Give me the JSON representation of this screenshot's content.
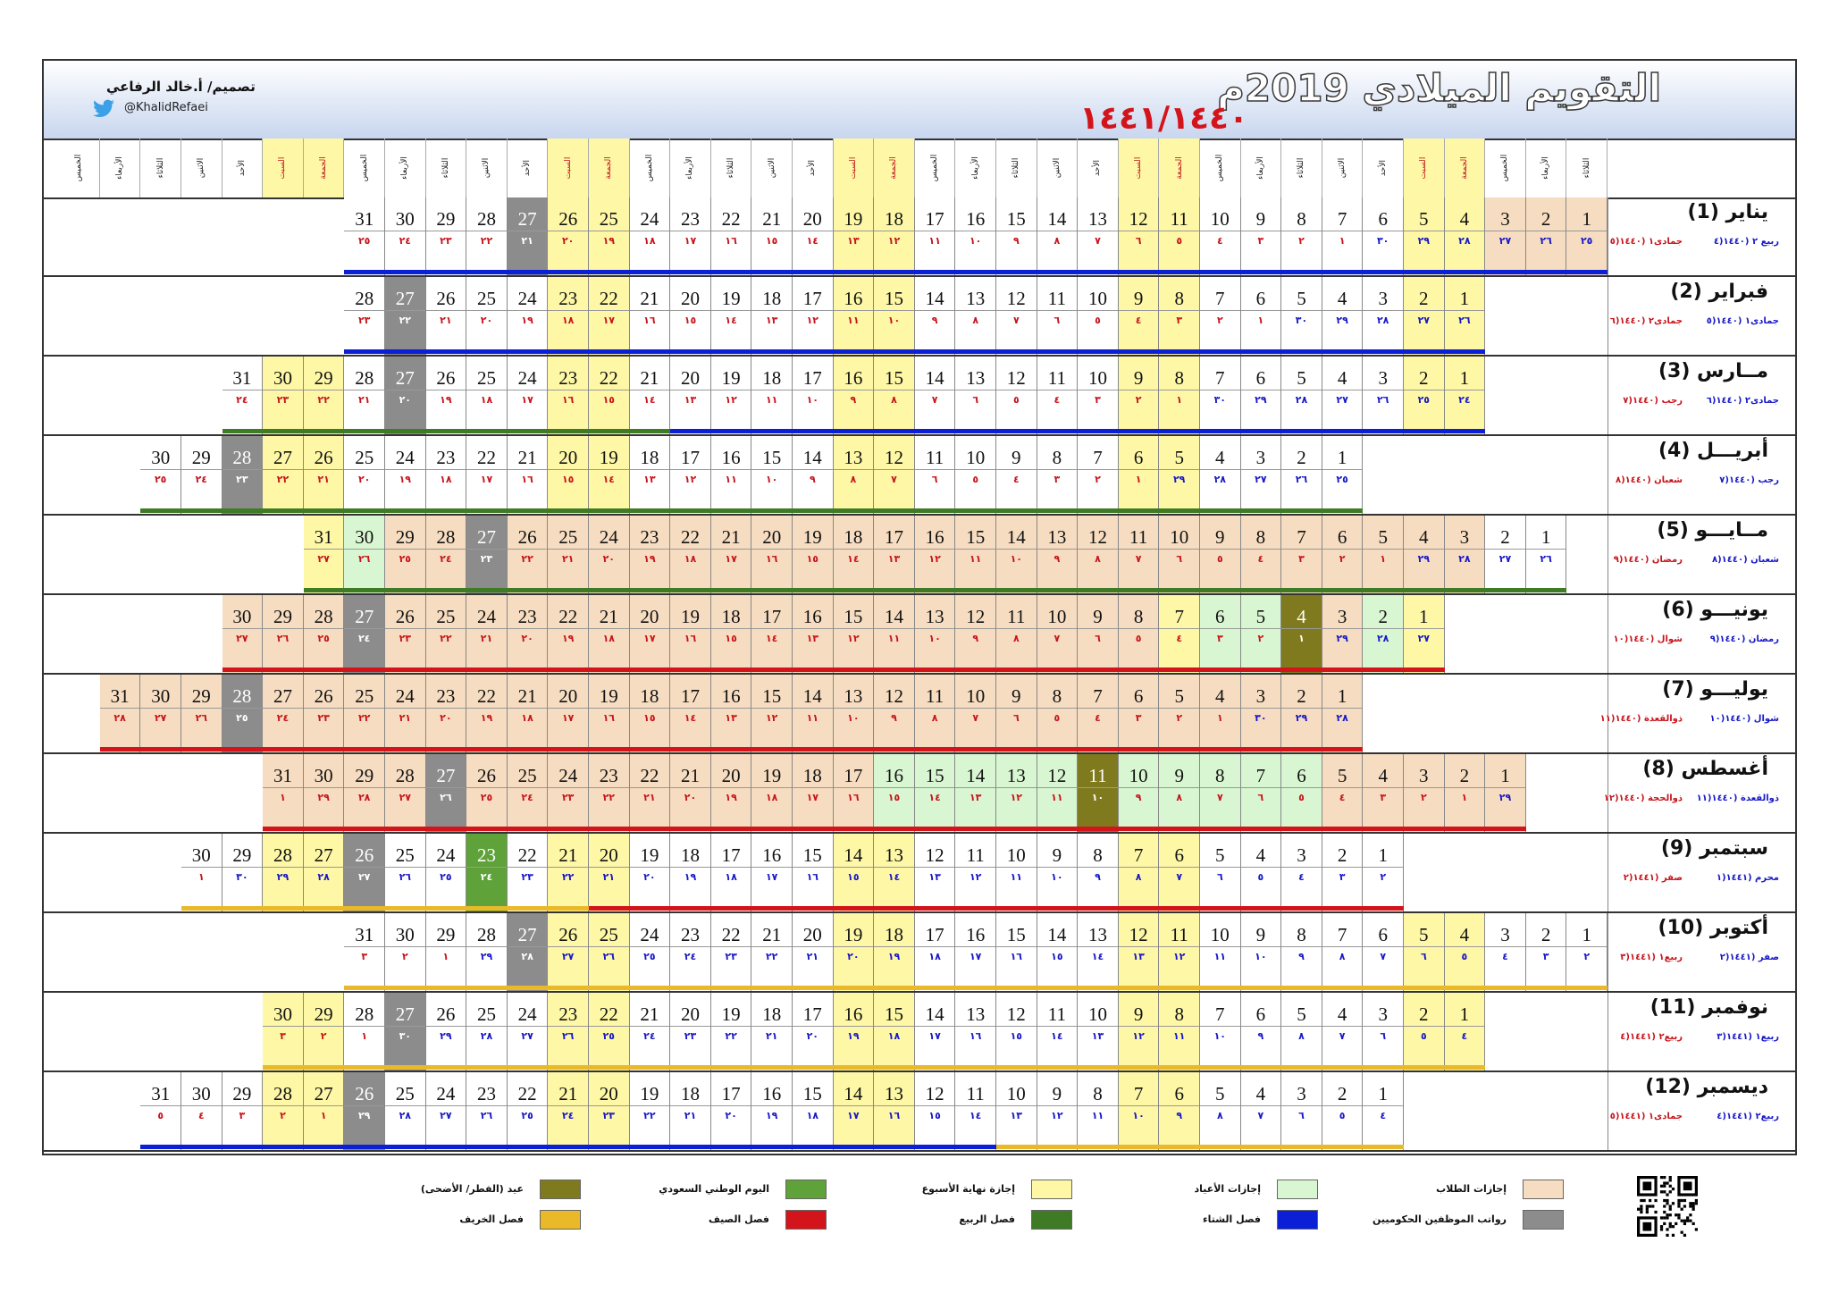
{
  "header": {
    "title": "التقويم الميلادي 2019م",
    "hijri_years": "١٤٤١/١٤٤٠",
    "designer": "تصميم/ أ.خالد الرفاعي",
    "twitter_handle": "@KhalidRefaei",
    "twitter_icon": "twitter-bird-icon"
  },
  "day_headers": [
    "الثلاثاء",
    "الأربعاء",
    "الخميس",
    "الجمعة",
    "السبت",
    "الأحد",
    "الاثنين",
    "الثلاثاء",
    "الأربعاء",
    "الخميس",
    "الجمعة",
    "السبت",
    "الأحد",
    "الاثنين",
    "الثلاثاء",
    "الأربعاء",
    "الخميس",
    "الجمعة",
    "السبت",
    "الأحد",
    "الاثنين",
    "الثلاثاء",
    "الأربعاء",
    "الخميس",
    "الجمعة",
    "السبت",
    "الأحد",
    "الاثنين",
    "الثلاثاء",
    "الأربعاء",
    "الخميس",
    "الجمعة",
    "السبت",
    "الأحد",
    "الاثنين",
    "الثلاثاء",
    "الأربعاء",
    "الخميس",
    "الجمعة",
    "السبت",
    "الأحد",
    "الاثنين"
  ],
  "months": [
    {
      "name": "يناير (1)",
      "hijri_a": "ربيع ٢ (١٤٤٠(٤",
      "hijri_b": "جمادى١ (١٤٤٠(٥",
      "offset": 0,
      "h": [
        "٢٥",
        "٢٦",
        "٢٧",
        "٢٨",
        "٢٩",
        "٣٠",
        "١",
        "٢",
        "٣",
        "٤",
        "٥",
        "٦",
        "٧",
        "٨",
        "٩",
        "١٠",
        "١١",
        "١٢",
        "١٣",
        "١٤",
        "١٥",
        "١٦",
        "١٧",
        "١٨",
        "١٩",
        "٢٠",
        "٢١",
        "٢٢",
        "٢٣",
        "٢٤",
        "٢٥"
      ],
      "hc_switch": 7,
      "student": [
        1,
        2,
        3
      ],
      "eid": [],
      "holiday": [],
      "national": [],
      "salary": [
        27
      ],
      "season": [
        {
          "from": 1,
          "to": 31,
          "color": "#0b1fd6"
        }
      ]
    },
    {
      "name": "فبراير (2)",
      "hijri_a": "جمادى١ (١٤٤٠(٥",
      "hijri_b": "جمادى٢ (١٤٤٠(٦",
      "offset": 3,
      "h": [
        "٢٦",
        "٢٧",
        "٢٨",
        "٢٩",
        "٣٠",
        "١",
        "٢",
        "٣",
        "٤",
        "٥",
        "٦",
        "٧",
        "٨",
        "٩",
        "١٠",
        "١١",
        "١٢",
        "١٣",
        "١٤",
        "١٥",
        "١٦",
        "١٧",
        "١٨",
        "١٩",
        "٢٠",
        "٢١",
        "٢٢",
        "٢٣"
      ],
      "hc_switch": 6,
      "student": [],
      "eid": [],
      "holiday": [],
      "national": [],
      "salary": [
        27
      ],
      "season": [
        {
          "from": 1,
          "to": 28,
          "color": "#0b1fd6"
        }
      ]
    },
    {
      "name": "مــارس (3)",
      "hijri_a": "جمادى٢ (١٤٤٠(٦",
      "hijri_b": "رجب (١٤٤٠(٧",
      "offset": 3,
      "h": [
        "٢٤",
        "٢٥",
        "٢٦",
        "٢٧",
        "٢٨",
        "٢٩",
        "٣٠",
        "١",
        "٢",
        "٣",
        "٤",
        "٥",
        "٦",
        "٧",
        "٨",
        "٩",
        "١٠",
        "١١",
        "١٢",
        "١٣",
        "١٤",
        "١٥",
        "١٦",
        "١٧",
        "١٨",
        "١٩",
        "٢٠",
        "٢١",
        "٢٢",
        "٢٣",
        "٢٤"
      ],
      "hc_switch": 8,
      "student": [],
      "eid": [],
      "holiday": [],
      "national": [],
      "salary": [
        27
      ],
      "season": [
        {
          "from": 1,
          "to": 20,
          "color": "#0b1fd6"
        },
        {
          "from": 21,
          "to": 31,
          "color": "#3f7a24"
        }
      ]
    },
    {
      "name": "أبريـــل (4)",
      "hijri_a": "رجب (١٤٤٠(٧",
      "hijri_b": "شعبان (١٤٤٠(٨",
      "offset": 6,
      "h": [
        "٢٥",
        "٢٦",
        "٢٧",
        "٢٨",
        "٢٩",
        "١",
        "٢",
        "٣",
        "٤",
        "٥",
        "٦",
        "٧",
        "٨",
        "٩",
        "١٠",
        "١١",
        "١٢",
        "١٣",
        "١٤",
        "١٥",
        "١٦",
        "١٧",
        "١٨",
        "١٩",
        "٢٠",
        "٢١",
        "٢٢",
        "٢٣",
        "٢٤",
        "٢٥"
      ],
      "hc_switch": 6,
      "student": [],
      "eid": [],
      "holiday": [],
      "national": [],
      "salary": [
        28
      ],
      "season": [
        {
          "from": 1,
          "to": 30,
          "color": "#3f7a24"
        }
      ]
    },
    {
      "name": "مــايـــو (5)",
      "hijri_a": "شعبان (١٤٤٠(٨",
      "hijri_b": "رمضان (١٤٤٠(٩",
      "offset": 1,
      "h": [
        "٢٦",
        "٢٧",
        "٢٨",
        "٢٩",
        "١",
        "٢",
        "٣",
        "٤",
        "٥",
        "٦",
        "٧",
        "٨",
        "٩",
        "١٠",
        "١١",
        "١٢",
        "١٣",
        "١٤",
        "١٥",
        "١٦",
        "١٧",
        "١٨",
        "١٩",
        "٢٠",
        "٢١",
        "٢٢",
        "٢٣",
        "٢٤",
        "٢٥",
        "٢٦",
        "٢٧"
      ],
      "hc_switch": 5,
      "student": [
        3,
        4,
        5,
        6,
        7,
        8,
        9,
        10,
        11,
        12,
        13,
        14,
        15,
        16,
        17,
        18,
        19,
        20,
        21,
        22,
        23,
        24,
        25,
        26,
        28,
        29
      ],
      "eid": [],
      "holiday": [
        30
      ],
      "national": [],
      "salary": [
        27
      ],
      "season": [
        {
          "from": 1,
          "to": 31,
          "color": "#3f7a24"
        }
      ]
    },
    {
      "name": "يونيـــو (6)",
      "hijri_a": "رمضان (١٤٤٠(٩",
      "hijri_b": "شوال (١٤٤٠(١٠",
      "offset": 4,
      "h": [
        "٢٧",
        "٢٨",
        "٢٩",
        "١",
        "٢",
        "٣",
        "٤",
        "٥",
        "٦",
        "٧",
        "٨",
        "٩",
        "١٠",
        "١١",
        "١٢",
        "١٣",
        "١٤",
        "١٥",
        "١٦",
        "١٧",
        "١٨",
        "١٩",
        "٢٠",
        "٢١",
        "٢٢",
        "٢٣",
        "٢٤",
        "٢٥",
        "٢٦",
        "٢٧"
      ],
      "hc_switch": 4,
      "student": [
        3,
        8,
        9,
        10,
        11,
        12,
        13,
        14,
        15,
        16,
        17,
        18,
        19,
        20,
        21,
        22,
        23,
        24,
        25,
        26,
        28,
        29,
        30
      ],
      "eid": [
        4
      ],
      "holiday": [
        2,
        5,
        6
      ],
      "national": [],
      "salary": [
        27
      ],
      "season": [
        {
          "from": 1,
          "to": 30,
          "color": "#d4141b"
        }
      ]
    },
    {
      "name": "يوليـــو (7)",
      "hijri_a": "شوال (١٤٤٠(١٠",
      "hijri_b": "ذوالقعدة (١٤٤٠(١١",
      "offset": 6,
      "h": [
        "٢٨",
        "٢٩",
        "٣٠",
        "١",
        "٢",
        "٣",
        "٤",
        "٥",
        "٦",
        "٧",
        "٨",
        "٩",
        "١٠",
        "١١",
        "١٢",
        "١٣",
        "١٤",
        "١٥",
        "١٦",
        "١٧",
        "١٨",
        "١٩",
        "٢٠",
        "٢١",
        "٢٢",
        "٢٣",
        "٢٤",
        "٢٥",
        "٢٦",
        "٢٧",
        "٢٨"
      ],
      "hc_switch": 4,
      "student": [
        1,
        2,
        3,
        4,
        5,
        6,
        7,
        8,
        9,
        10,
        11,
        12,
        13,
        14,
        15,
        16,
        17,
        18,
        19,
        20,
        21,
        22,
        23,
        24,
        25,
        26,
        27,
        29,
        30,
        31
      ],
      "eid": [],
      "holiday": [],
      "national": [],
      "salary": [
        28
      ],
      "season": [
        {
          "from": 1,
          "to": 31,
          "color": "#d4141b"
        }
      ]
    },
    {
      "name": "أغسطس (8)",
      "hijri_a": "ذوالقعدة (١٤٤٠(١١",
      "hijri_b": "ذوالحجة (١٤٤٠(١٢",
      "offset": 2,
      "h": [
        "٢٩",
        "١",
        "٢",
        "٣",
        "٤",
        "٥",
        "٦",
        "٧",
        "٨",
        "٩",
        "١٠",
        "١١",
        "١٢",
        "١٣",
        "١٤",
        "١٥",
        "١٦",
        "١٧",
        "١٨",
        "١٩",
        "٢٠",
        "٢١",
        "٢٢",
        "٢٣",
        "٢٤",
        "٢٥",
        "٢٦",
        "٢٧",
        "٢٨",
        "٢٩",
        "١"
      ],
      "hc_switch": 2,
      "student": [
        1,
        2,
        3,
        4,
        5,
        17,
        18,
        19,
        20,
        21,
        22,
        23,
        24,
        25,
        26,
        28,
        29,
        30,
        31
      ],
      "eid": [
        11
      ],
      "holiday": [
        6,
        7,
        8,
        9,
        10,
        12,
        13,
        14,
        15,
        16
      ],
      "national": [],
      "salary": [
        27
      ],
      "season": [
        {
          "from": 1,
          "to": 31,
          "color": "#d4141b"
        }
      ]
    },
    {
      "name": "سبتمبر (9)",
      "hijri_a": "محرم (١٤٤١(١",
      "hijri_b": "صفر (١٤٤١(٢",
      "offset": 5,
      "h": [
        "٢",
        "٣",
        "٤",
        "٥",
        "٦",
        "٧",
        "٨",
        "٩",
        "١٠",
        "١١",
        "١٢",
        "١٣",
        "١٤",
        "١٥",
        "١٦",
        "١٧",
        "١٨",
        "١٩",
        "٢٠",
        "٢١",
        "٢٢",
        "٢٣",
        "٢٤",
        "٢٥",
        "٢٦",
        "٢٧",
        "٢٨",
        "٢٩",
        "٣٠",
        "١"
      ],
      "hc_switch": 30,
      "student": [],
      "eid": [],
      "holiday": [],
      "national": [
        23
      ],
      "salary": [
        26
      ],
      "season": [
        {
          "from": 1,
          "to": 20,
          "color": "#d4141b"
        },
        {
          "from": 21,
          "to": 30,
          "color": "#e9b92a"
        }
      ]
    },
    {
      "name": "أكتوبر (10)",
      "hijri_a": "صفر (١٤٤١(٢",
      "hijri_b": "ربيع١ (١٤٤١(٣",
      "offset": 0,
      "h": [
        "٢",
        "٣",
        "٤",
        "٥",
        "٦",
        "٧",
        "٨",
        "٩",
        "١٠",
        "١١",
        "١٢",
        "١٣",
        "١٤",
        "١٥",
        "١٦",
        "١٧",
        "١٨",
        "١٩",
        "٢٠",
        "٢١",
        "٢٢",
        "٢٣",
        "٢٤",
        "٢٥",
        "٢٦",
        "٢٧",
        "٢٨",
        "٢٩",
        "١",
        "٢",
        "٣"
      ],
      "hc_switch": 29,
      "student": [],
      "eid": [],
      "holiday": [],
      "national": [],
      "salary": [
        27
      ],
      "season": [
        {
          "from": 1,
          "to": 31,
          "color": "#e9b92a"
        }
      ]
    },
    {
      "name": "نوفمبر (11)",
      "hijri_a": "ربيع١ (١٤٤١(٣",
      "hijri_b": "ربيع٢ (١٤٤١(٤",
      "offset": 3,
      "h": [
        "٤",
        "٥",
        "٦",
        "٧",
        "٨",
        "٩",
        "١٠",
        "١١",
        "١٢",
        "١٣",
        "١٤",
        "١٥",
        "١٦",
        "١٧",
        "١٨",
        "١٩",
        "٢٠",
        "٢١",
        "٢٢",
        "٢٣",
        "٢٤",
        "٢٥",
        "٢٦",
        "٢٧",
        "٢٨",
        "٢٩",
        "٣٠",
        "١",
        "٢",
        "٣"
      ],
      "hc_switch": 28,
      "student": [],
      "eid": [],
      "holiday": [],
      "national": [],
      "salary": [
        27
      ],
      "season": [
        {
          "from": 1,
          "to": 30,
          "color": "#e9b92a"
        }
      ]
    },
    {
      "name": "ديسمبر (12)",
      "hijri_a": "ربيع٢ (١٤٤١(٤",
      "hijri_b": "جمادى١ (١٤٤١(٥",
      "offset": 5,
      "h": [
        "٤",
        "٥",
        "٦",
        "٧",
        "٨",
        "٩",
        "١٠",
        "١١",
        "١٢",
        "١٣",
        "١٤",
        "١٥",
        "١٦",
        "١٧",
        "١٨",
        "١٩",
        "٢٠",
        "٢١",
        "٢٢",
        "٢٣",
        "٢٤",
        "٢٥",
        "٢٦",
        "٢٧",
        "٢٨",
        "٢٩",
        "١",
        "٢",
        "٣",
        "٤",
        "٥"
      ],
      "hc_switch": 27,
      "student": [],
      "eid": [],
      "holiday": [],
      "national": [],
      "salary": [
        26
      ],
      "season": [
        {
          "from": 1,
          "to": 10,
          "color": "#e9b92a"
        },
        {
          "from": 11,
          "to": 31,
          "color": "#0b1fd6"
        }
      ]
    }
  ],
  "legend": [
    {
      "label": "إجازات الطلاب",
      "color": "#f6dcc0"
    },
    {
      "label": "إجازات الأعياد",
      "color": "#d9f6d2"
    },
    {
      "label": "إجازة نهاية الأسبوع",
      "color": "#fdf7a6"
    },
    {
      "label": "اليوم الوطني السعودي",
      "color": "#5fa23a"
    },
    {
      "label": "عيد (الفطر/ الأضحى)",
      "color": "#7f7a1e"
    },
    {
      "label": "رواتب الموظفين الحكوميين",
      "color": "#8c8c8c"
    },
    {
      "label": "فصل الشتاء",
      "color": "#0b1fd6"
    },
    {
      "label": "فصل الربيع",
      "color": "#3f7a24"
    },
    {
      "label": "فصل الصيف",
      "color": "#d4141b"
    },
    {
      "label": "فصل الخريف",
      "color": "#e9b92a"
    }
  ],
  "qr_icon": "qr-code-icon"
}
